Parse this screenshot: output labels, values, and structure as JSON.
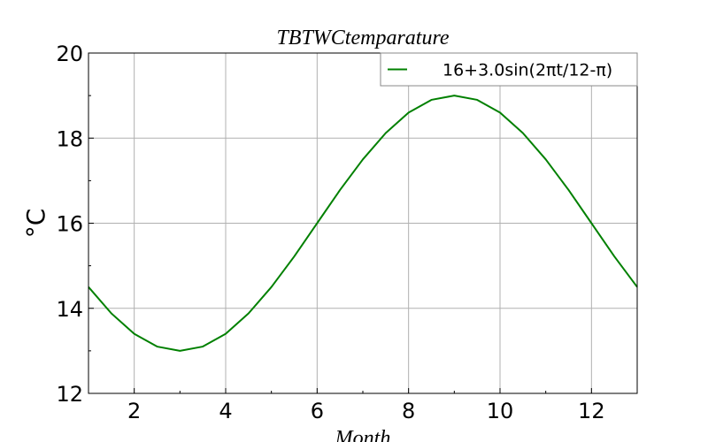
{
  "chart_data": {
    "type": "line",
    "title": "TBTWCtemparature",
    "xlabel": "Month",
    "ylabel": "°C",
    "xlim": [
      1,
      13
    ],
    "ylim": [
      12,
      20
    ],
    "xticks": [
      2,
      4,
      6,
      8,
      10,
      12
    ],
    "yticks": [
      12,
      14,
      16,
      18,
      20
    ],
    "grid": true,
    "legend_position": "top-right",
    "series": [
      {
        "name": "16+3.0sin(2πt/12-π)",
        "color": "#008000",
        "x": [
          1,
          1.5,
          2,
          2.5,
          3,
          3.5,
          4,
          4.5,
          5,
          5.5,
          6,
          6.5,
          7,
          7.5,
          8,
          8.5,
          9,
          9.5,
          10,
          10.5,
          11,
          11.5,
          12,
          12.5,
          13
        ],
        "y": [
          14.5,
          13.88,
          13.4,
          13.1,
          13.0,
          13.1,
          13.4,
          13.88,
          14.5,
          15.22,
          16.0,
          16.78,
          17.5,
          18.12,
          18.6,
          18.9,
          19.0,
          18.9,
          18.6,
          18.12,
          17.5,
          16.78,
          16.0,
          15.22,
          14.5
        ]
      }
    ]
  }
}
